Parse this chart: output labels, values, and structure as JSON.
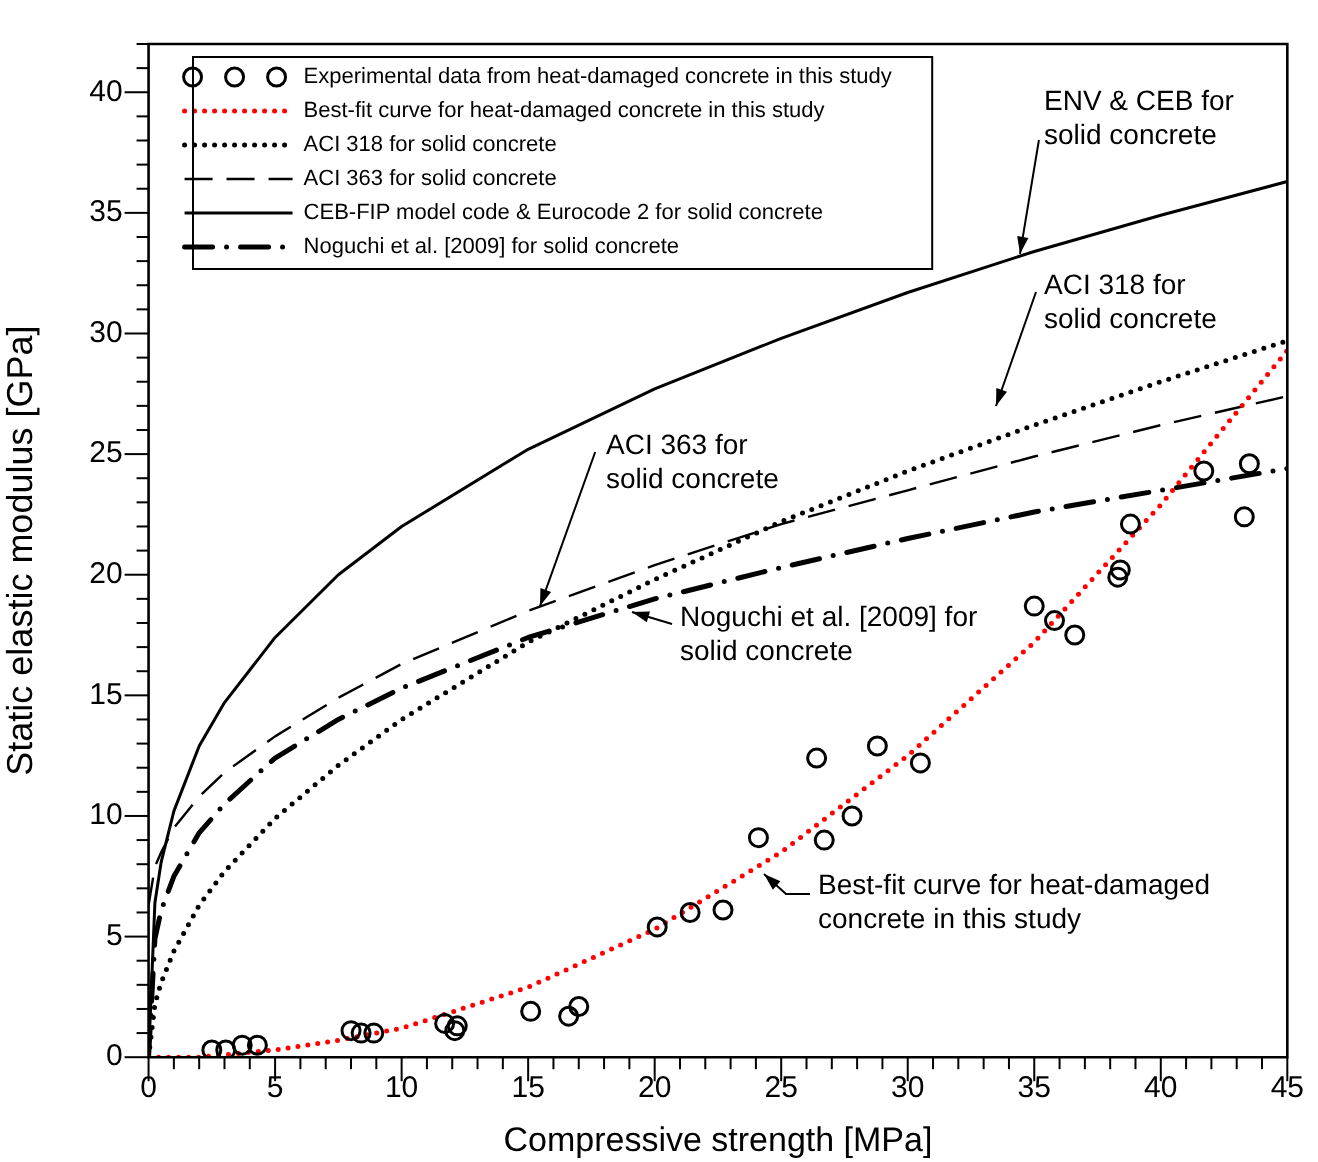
{
  "chart_data": {
    "type": "line",
    "xlabel": "Compressive strength [MPa]",
    "ylabel": "Static elastic modulus [GPa]",
    "xlim": [
      0,
      45
    ],
    "ylim": [
      0,
      42
    ],
    "xticks": [
      0,
      {
        "value": 1,
        "label": null
      },
      {
        "value": 2,
        "label": null
      },
      {
        "value": 3,
        "label": null
      },
      {
        "value": 4,
        "label": null
      },
      5,
      {
        "value": 6,
        "label": null
      },
      {
        "value": 7,
        "label": null
      },
      {
        "value": 8,
        "label": null
      },
      {
        "value": 9,
        "label": null
      },
      10,
      {
        "value": 11,
        "label": null
      },
      {
        "value": 12,
        "label": null
      },
      {
        "value": 13,
        "label": null
      },
      {
        "value": 14,
        "label": null
      },
      15,
      {
        "value": 16,
        "label": null
      },
      {
        "value": 17,
        "label": null
      },
      {
        "value": 18,
        "label": null
      },
      {
        "value": 19,
        "label": null
      },
      20,
      {
        "value": 21,
        "label": null
      },
      {
        "value": 22,
        "label": null
      },
      {
        "value": 23,
        "label": null
      },
      {
        "value": 24,
        "label": null
      },
      25,
      {
        "value": 26,
        "label": null
      },
      {
        "value": 27,
        "label": null
      },
      {
        "value": 28,
        "label": null
      },
      {
        "value": 29,
        "label": null
      },
      30,
      {
        "value": 31,
        "label": null
      },
      {
        "value": 32,
        "label": null
      },
      {
        "value": 33,
        "label": null
      },
      {
        "value": 34,
        "label": null
      },
      35,
      {
        "value": 36,
        "label": null
      },
      {
        "value": 37,
        "label": null
      },
      {
        "value": 38,
        "label": null
      },
      {
        "value": 39,
        "label": null
      },
      40,
      {
        "value": 41,
        "label": null
      },
      {
        "value": 42,
        "label": null
      },
      {
        "value": 43,
        "label": null
      },
      {
        "value": 44,
        "label": null
      },
      45
    ],
    "yticks": [
      0,
      {
        "value": 1,
        "label": null
      },
      {
        "value": 2,
        "label": null
      },
      {
        "value": 3,
        "label": null
      },
      {
        "value": 4,
        "label": null
      },
      5,
      {
        "value": 6,
        "label": null
      },
      {
        "value": 7,
        "label": null
      },
      {
        "value": 8,
        "label": null
      },
      {
        "value": 9,
        "label": null
      },
      10,
      {
        "value": 11,
        "label": null
      },
      {
        "value": 12,
        "label": null
      },
      {
        "value": 13,
        "label": null
      },
      {
        "value": 14,
        "label": null
      },
      15,
      {
        "value": 16,
        "label": null
      },
      {
        "value": 17,
        "label": null
      },
      {
        "value": 18,
        "label": null
      },
      {
        "value": 19,
        "label": null
      },
      20,
      {
        "value": 21,
        "label": null
      },
      {
        "value": 22,
        "label": null
      },
      {
        "value": 23,
        "label": null
      },
      {
        "value": 24,
        "label": null
      },
      25,
      {
        "value": 26,
        "label": null
      },
      {
        "value": 27,
        "label": null
      },
      {
        "value": 28,
        "label": null
      },
      {
        "value": 29,
        "label": null
      },
      30,
      {
        "value": 31,
        "label": null
      },
      {
        "value": 32,
        "label": null
      },
      {
        "value": 33,
        "label": null
      },
      {
        "value": 34,
        "label": null
      },
      35,
      {
        "value": 36,
        "label": null
      },
      {
        "value": 37,
        "label": null
      },
      {
        "value": 38,
        "label": null
      },
      {
        "value": 39,
        "label": null
      },
      40,
      {
        "value": 41,
        "label": null
      },
      {
        "value": 42,
        "label": null
      }
    ],
    "grid": false,
    "legend": "top left",
    "series": [
      {
        "name": "Experimental data from heat-damaged concrete in this study",
        "type": "scatter",
        "marker": "circle",
        "color": "#000000",
        "x": [
          2.5,
          3.05,
          3.7,
          4.3,
          8.0,
          8.4,
          8.9,
          11.7,
          12.1,
          12.2,
          15.1,
          16.6,
          17.0,
          20.1,
          21.4,
          22.7,
          24.1,
          26.4,
          26.7,
          27.8,
          28.8,
          30.5,
          35.0,
          35.8,
          36.6,
          38.3,
          38.4,
          38.8,
          41.7,
          43.3,
          43.5
        ],
        "values": [
          0.3,
          0.3,
          0.5,
          0.5,
          1.1,
          1.0,
          1.0,
          1.4,
          1.1,
          1.3,
          1.9,
          1.7,
          2.1,
          5.4,
          6.0,
          6.1,
          9.1,
          12.4,
          9.0,
          10.0,
          12.9,
          12.2,
          18.7,
          18.1,
          17.5,
          19.9,
          20.2,
          22.1,
          24.3,
          22.4,
          24.6
        ]
      },
      {
        "name": "Best-fit curve for heat-damaged concrete in this study",
        "line_style": "dotted",
        "marker": "none",
        "color": "#ff0000",
        "x": [
          0,
          2,
          5,
          7.5,
          10,
          15,
          20,
          25,
          30,
          35,
          40,
          45
        ],
        "values": [
          0,
          0,
          0.3,
          0.7,
          1.2,
          2.9,
          5.3,
          8.5,
          12.5,
          17.2,
          22.9,
          29.3
        ]
      },
      {
        "name": "ACI 318 for solid concrete",
        "line_style": "dotted",
        "marker": "none",
        "color": "#000000",
        "x": [
          0,
          0.25,
          0.5,
          1,
          2,
          3,
          5,
          7.5,
          10,
          15,
          20,
          25,
          30,
          35,
          40,
          45
        ],
        "values": [
          0,
          2.2,
          3.1,
          4.4,
          6.3,
          7.7,
          9.9,
          12.1,
          14.0,
          17.2,
          19.8,
          22.2,
          24.3,
          26.2,
          28.0,
          29.7
        ]
      },
      {
        "name": "ACI 363 for solid concrete",
        "line_style": "dashed",
        "marker": "none",
        "color": "#000000",
        "x": [
          0,
          0.25,
          0.5,
          1,
          2,
          3,
          5,
          7.5,
          10,
          15,
          20,
          25,
          30,
          35,
          40,
          45
        ],
        "values": [
          6.3,
          7.9,
          8.5,
          9.5,
          10.8,
          11.8,
          13.3,
          14.9,
          16.3,
          18.5,
          20.4,
          22.1,
          23.5,
          24.9,
          26.2,
          27.4
        ]
      },
      {
        "name": "CEB-FIP model code & Eurocode 2 for solid concrete",
        "line_style": "solid",
        "marker": "none",
        "color": "#000000",
        "x": [
          0,
          0.25,
          0.5,
          1,
          2,
          3,
          5,
          7.5,
          10,
          15,
          20,
          25,
          30,
          35,
          40,
          45
        ],
        "values": [
          0,
          6.4,
          8.1,
          10.2,
          12.9,
          14.7,
          17.4,
          20.0,
          22.0,
          25.2,
          27.7,
          29.8,
          31.7,
          33.4,
          34.9,
          36.3
        ]
      },
      {
        "name": "Noguchi et al. [2009] for solid concrete",
        "line_style": "dashdot",
        "marker": "none",
        "color": "#000000",
        "x": [
          0,
          0.25,
          0.5,
          1,
          2,
          3,
          5,
          7.5,
          10,
          15,
          20,
          25,
          30,
          35,
          40,
          45
        ],
        "values": [
          0,
          4.9,
          6.1,
          7.5,
          9.3,
          10.5,
          12.4,
          14.0,
          15.3,
          17.4,
          19.0,
          20.3,
          21.5,
          22.6,
          23.5,
          24.4
        ]
      }
    ],
    "annotations": [
      {
        "text": "ENV & CEB for solid concrete",
        "x": 34.4,
        "y": 33.3
      },
      "ACI 318 for solid concrete",
      {
        "text": "ACI 363 for solid concrete",
        "x": 15.5,
        "y": 18.7
      },
      "Noguchi et al. [2009] for solid concrete",
      "Best-fit curve for heat-damaged concrete in this study"
    ]
  }
}
